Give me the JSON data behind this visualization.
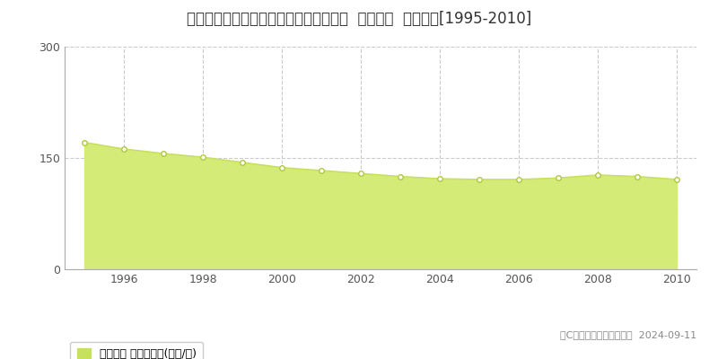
{
  "title": "東京都江戸川区筊崎町３丁目４６番１外  地価公示  地価推移[1995-2010]",
  "years": [
    1995,
    1996,
    1997,
    1998,
    1999,
    2000,
    2001,
    2002,
    2003,
    2004,
    2005,
    2006,
    2007,
    2008,
    2009,
    2010
  ],
  "values": [
    171,
    162,
    156,
    151,
    144,
    137,
    133,
    129,
    125,
    122,
    121,
    121,
    123,
    127,
    125,
    121
  ],
  "line_color": "#c8e060",
  "fill_color": "#d4eb78",
  "marker_facecolor": "#ffffff",
  "marker_edgecolor": "#b0c840",
  "background_color": "#ffffff",
  "grid_color": "#cccccc",
  "yticks": [
    0,
    150,
    300
  ],
  "ymin": 0,
  "ymax": 300,
  "xtick_labels": [
    1996,
    1998,
    2000,
    2002,
    2004,
    2006,
    2008,
    2010
  ],
  "legend_label": "地価公示 平均坂単価(万円/坤)",
  "legend_swatch_color": "#c8e060",
  "copyright_text": "（C）土地価格ドットコム  2024-09-11",
  "title_fontsize": 12,
  "tick_fontsize": 9,
  "legend_fontsize": 9,
  "copyright_fontsize": 8,
  "spine_color": "#aaaaaa"
}
